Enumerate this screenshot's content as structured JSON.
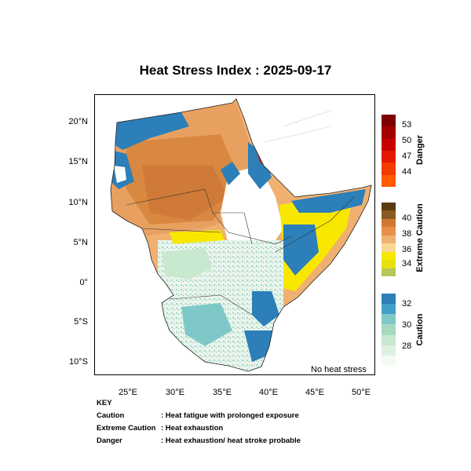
{
  "title": "Heat Stress Index : 2025-09-17",
  "map": {
    "lat_labels": [
      "20°N",
      "15°N",
      "10°N",
      "5°N",
      "0°",
      "5°S",
      "10°S"
    ],
    "lon_labels": [
      "25°E",
      "30°E",
      "35°E",
      "40°E",
      "45°E",
      "50°E"
    ],
    "no_heat_label": "No heat stress"
  },
  "legend": {
    "danger": {
      "title": "Danger",
      "ticks": [
        "53",
        "50",
        "47",
        "44"
      ],
      "colors": [
        "#7f0000",
        "#a50000",
        "#c80000",
        "#e41a00",
        "#f03c00",
        "#ff5a00"
      ]
    },
    "extreme": {
      "title": "Extreme Caution",
      "ticks": [
        "40",
        "38",
        "36",
        "34"
      ],
      "colors": [
        "#5a3a10",
        "#8a5a20",
        "#d07830",
        "#e89048",
        "#f0b070",
        "#f8d890",
        "#f8e800",
        "#e8e010",
        "#b8c858"
      ]
    },
    "caution": {
      "title": "Caution",
      "ticks": [
        "32",
        "30",
        "28"
      ],
      "colors": [
        "#2c7fb8",
        "#41a0c8",
        "#7fc8c8",
        "#a8d8c0",
        "#c8e8d0",
        "#e0f0e0",
        "#f4faf4"
      ]
    }
  },
  "key": {
    "heading": "KEY",
    "rows": [
      {
        "term": "Caution",
        "desc": ": Heat fatigue with prolonged exposure"
      },
      {
        "term": "Extreme Caution",
        "desc": ": Heat exhaustion"
      },
      {
        "term": "Danger",
        "desc": ": Heat exhaustion/ heat stroke probable"
      }
    ]
  }
}
